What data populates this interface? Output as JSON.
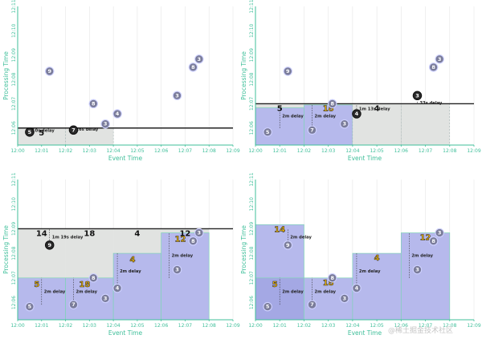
{
  "axis": {
    "x_title": "Event Time",
    "y_title": "Processing Time",
    "x_ticks": [
      "12:00",
      "12:01",
      "12:02",
      "12:03",
      "12:04",
      "12:05",
      "12:06",
      "12:07",
      "12:08",
      "12:09"
    ],
    "y_ticks": [
      "12:06",
      "12:07",
      "12:08",
      "12:09",
      "12:10",
      "12:11"
    ]
  },
  "watermark_text": "@稀土掘金技术社区",
  "chart_data": [
    {
      "type": "scatter",
      "panel": "top-left",
      "watermark_level": "12:06",
      "panes": [
        {
          "start": 0,
          "end": 2,
          "sum": "5",
          "sum_style": "plain",
          "fill": "grey"
        },
        {
          "start": 2,
          "end": 4,
          "sum": "",
          "sum_style": "plain",
          "fill": "grey"
        }
      ],
      "points": [
        {
          "x": "12:00:30",
          "y": "12:05:50",
          "v": "5",
          "style": "dark"
        },
        {
          "x": "12:02:20",
          "y": "12:05:55",
          "v": "7",
          "style": "dark"
        },
        {
          "x": "12:03:40",
          "y": "12:06:10",
          "v": "3",
          "style": "light"
        },
        {
          "x": "12:04:10",
          "y": "12:06:35",
          "v": "4",
          "style": "light"
        },
        {
          "x": "12:03:10",
          "y": "12:07:00",
          "v": "8",
          "style": "light"
        },
        {
          "x": "12:01:20",
          "y": "12:08:20",
          "v": "9",
          "style": "light"
        },
        {
          "x": "12:06:40",
          "y": "12:07:20",
          "v": "3",
          "style": "light"
        },
        {
          "x": "12:07:20",
          "y": "12:08:30",
          "v": "8",
          "style": "light"
        },
        {
          "x": "12:07:35",
          "y": "12:08:50",
          "v": "3",
          "style": "light"
        }
      ],
      "delays": [
        {
          "x": "12:00:30",
          "from": "12:05:50",
          "to": "12:06:00",
          "label": "10s delay"
        },
        {
          "x": "12:02:20",
          "from": "12:05:55",
          "to": "12:06:00",
          "label": "26s delay"
        }
      ]
    },
    {
      "type": "scatter",
      "panel": "top-right",
      "watermark_level": "12:07",
      "panes": [
        {
          "start": 0,
          "end": 2,
          "sum": "5",
          "sum_style": "plain",
          "fill": "blue",
          "fill_top": "12:06:50"
        },
        {
          "start": 2,
          "end": 4,
          "sum": "18",
          "sum_style": "yellow",
          "fill": "blue",
          "fill_top": "12:06:57"
        },
        {
          "start": 4,
          "end": 6,
          "sum": "4",
          "sum_style": "plain",
          "fill": "grey"
        },
        {
          "start": 6,
          "end": 8,
          "sum": "",
          "sum_style": "plain",
          "fill": "grey"
        }
      ],
      "points": [
        {
          "x": "12:00:30",
          "y": "12:05:50",
          "v": "5",
          "style": "light"
        },
        {
          "x": "12:02:20",
          "y": "12:05:55",
          "v": "7",
          "style": "light"
        },
        {
          "x": "12:03:40",
          "y": "12:06:10",
          "v": "3",
          "style": "light"
        },
        {
          "x": "12:04:10",
          "y": "12:06:35",
          "v": "4",
          "style": "dark"
        },
        {
          "x": "12:03:10",
          "y": "12:07:00",
          "v": "8",
          "style": "light"
        },
        {
          "x": "12:01:20",
          "y": "12:08:20",
          "v": "9",
          "style": "light"
        },
        {
          "x": "12:06:40",
          "y": "12:07:20",
          "v": "3",
          "style": "dark"
        },
        {
          "x": "12:07:20",
          "y": "12:08:30",
          "v": "8",
          "style": "light"
        },
        {
          "x": "12:07:35",
          "y": "12:08:50",
          "v": "3",
          "style": "light"
        }
      ],
      "delays": [
        {
          "x": "12:01:00",
          "from": "12:06:00",
          "to": "12:07:00",
          "label": "2m delay"
        },
        {
          "x": "12:02:20",
          "from": "12:06:00",
          "to": "12:07:00",
          "label": "2m delay"
        },
        {
          "x": "12:04:10",
          "from": "12:06:35",
          "to": "12:07:00",
          "label": "1m 13s delay"
        },
        {
          "x": "12:06:40",
          "from": "12:07:05",
          "to": "12:07:00",
          "label": "33s delay"
        }
      ]
    },
    {
      "type": "scatter",
      "panel": "bottom-left",
      "watermark_level": "12:09",
      "panes": [
        {
          "start": 0,
          "end": 2,
          "sum": "14",
          "sum_style": "plain",
          "fill": "blue",
          "fill_top": "12:07:00",
          "sub_sum": "5"
        },
        {
          "start": 2,
          "end": 4,
          "sum": "18",
          "sum_style": "plain",
          "fill": "blue",
          "fill_top": "12:07:00",
          "sub_sum": "18"
        },
        {
          "start": 4,
          "end": 6,
          "sum": "4",
          "sum_style": "plain",
          "fill": "blue",
          "fill_top": "12:08:00",
          "sub_sum": "4"
        },
        {
          "start": 6,
          "end": 8,
          "sum": "12",
          "sum_style": "plain",
          "fill": "blue",
          "fill_top": "12:08:50",
          "sub_sum": "12"
        }
      ],
      "points": [
        {
          "x": "12:00:30",
          "y": "12:05:50",
          "v": "5",
          "style": "light"
        },
        {
          "x": "12:02:20",
          "y": "12:05:55",
          "v": "7",
          "style": "light"
        },
        {
          "x": "12:03:40",
          "y": "12:06:10",
          "v": "3",
          "style": "light"
        },
        {
          "x": "12:04:10",
          "y": "12:06:35",
          "v": "4",
          "style": "light"
        },
        {
          "x": "12:03:10",
          "y": "12:07:00",
          "v": "8",
          "style": "light"
        },
        {
          "x": "12:01:20",
          "y": "12:08:20",
          "v": "9",
          "style": "dark"
        },
        {
          "x": "12:06:40",
          "y": "12:07:20",
          "v": "3",
          "style": "light"
        },
        {
          "x": "12:07:20",
          "y": "12:08:30",
          "v": "8",
          "style": "light"
        },
        {
          "x": "12:07:35",
          "y": "12:08:50",
          "v": "3",
          "style": "light"
        }
      ],
      "delays": [
        {
          "x": "12:01:20",
          "from": "12:08:20",
          "to": "12:09:00",
          "label": "1m 19s delay"
        },
        {
          "x": "12:01:00",
          "from": "12:05:55",
          "to": "12:07:00",
          "label": "2m delay"
        },
        {
          "x": "12:02:20",
          "from": "12:05:55",
          "to": "12:07:00",
          "label": "2m delay"
        },
        {
          "x": "12:04:10",
          "from": "12:06:35",
          "to": "12:08:00",
          "label": "2m delay"
        },
        {
          "x": "12:06:20",
          "from": "12:07:00",
          "to": "12:08:50",
          "label": "2m delay"
        }
      ]
    },
    {
      "type": "scatter",
      "panel": "bottom-right",
      "watermark_level": "",
      "panes": [
        {
          "start": 0,
          "end": 2,
          "sum": "14",
          "sum_style": "yellow",
          "fill": "blue",
          "fill_top": "12:09:10",
          "sub_sum": "5",
          "inner_top": "12:07:00"
        },
        {
          "start": 2,
          "end": 4,
          "sum": "18",
          "sum_style": "yellow",
          "fill": "blue",
          "fill_top": "12:07:00"
        },
        {
          "start": 4,
          "end": 6,
          "sum": "4",
          "sum_style": "yellow",
          "fill": "blue",
          "fill_top": "12:08:00"
        },
        {
          "start": 6,
          "end": 8,
          "sum": "12",
          "sum_style": "yellow",
          "fill": "blue",
          "fill_top": "12:08:50"
        }
      ],
      "points": [
        {
          "x": "12:00:30",
          "y": "12:05:50",
          "v": "5",
          "style": "light"
        },
        {
          "x": "12:02:20",
          "y": "12:05:55",
          "v": "7",
          "style": "light"
        },
        {
          "x": "12:03:40",
          "y": "12:06:10",
          "v": "3",
          "style": "light"
        },
        {
          "x": "12:04:10",
          "y": "12:06:35",
          "v": "4",
          "style": "light"
        },
        {
          "x": "12:03:10",
          "y": "12:07:00",
          "v": "8",
          "style": "light"
        },
        {
          "x": "12:01:20",
          "y": "12:08:20",
          "v": "9",
          "style": "light"
        },
        {
          "x": "12:06:40",
          "y": "12:07:20",
          "v": "3",
          "style": "light"
        },
        {
          "x": "12:07:20",
          "y": "12:08:30",
          "v": "8",
          "style": "light"
        },
        {
          "x": "12:07:35",
          "y": "12:08:50",
          "v": "3",
          "style": "light"
        }
      ],
      "delays": [
        {
          "x": "12:01:20",
          "from": "12:08:20",
          "to": "12:09:00",
          "label": "2m delay"
        },
        {
          "x": "12:01:00",
          "from": "12:05:55",
          "to": "12:07:00",
          "label": "2m delay"
        },
        {
          "x": "12:02:20",
          "from": "12:05:55",
          "to": "12:07:00",
          "label": "2m delay"
        },
        {
          "x": "12:04:10",
          "from": "12:06:35",
          "to": "12:08:00",
          "label": "2m delay"
        },
        {
          "x": "12:06:20",
          "from": "12:07:00",
          "to": "12:08:50",
          "label": "2m delay"
        }
      ]
    }
  ],
  "colors": {
    "axis": "#3fbf9a",
    "grid": "#e6e6e6",
    "pane_grey": "#e1e3e1",
    "pane_blue": "#b6b9ec",
    "pane_blue_dark": "#a4a8e4",
    "watermark_line": "#222222",
    "point_dark": "#2b2b2b",
    "point_light": "#7a7c9a",
    "point_ring": "#cfd2ff",
    "yellow": "#f2b705"
  }
}
